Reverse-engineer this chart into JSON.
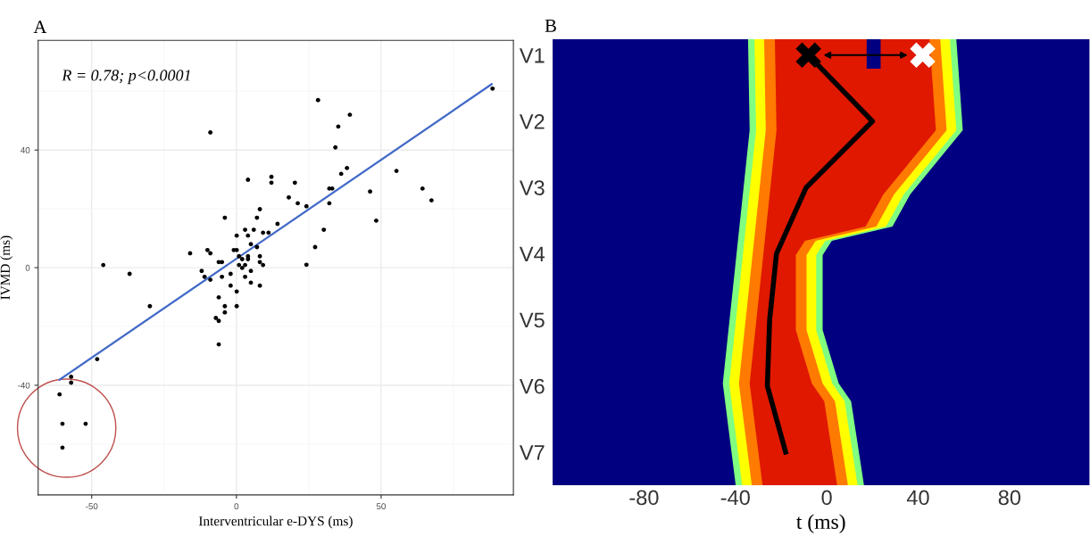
{
  "chart_data": [
    {
      "type": "scatter",
      "title": "A",
      "xlabel": "Interventricular e-DYS (ms)",
      "ylabel": "IVMD (ms)",
      "xlim": [
        -68.5,
        95.7
      ],
      "ylim": [
        -77.3,
        77.3
      ],
      "xticks": [
        -50,
        0,
        50
      ],
      "yticks": [
        -40,
        0,
        40
      ],
      "grid": true,
      "annotations": [
        "R = 0.78; p<0.0001"
      ],
      "series": [
        {
          "color": "#000000",
          "marker": "circle",
          "x": [
            -9.0,
            4.0,
            12.1,
            12.1,
            20.2,
            18.1,
            21.2,
            8.1,
            -4.0,
            7.1,
            14.2,
            3.0,
            6.0,
            0.1,
            4.0,
            9.2,
            11.1,
            5.0,
            7.1,
            -10.0,
            -9.0,
            -16.0,
            -0.9,
            0.1,
            0.9,
            2.0,
            4.0,
            4.0,
            8.1,
            -6.1,
            -5.0,
            8.1,
            9.2,
            0.9,
            3.0,
            2.0,
            -46.0,
            -36.9,
            -12.0,
            -11.0,
            -9.0,
            -5.0,
            -2.0,
            5.0,
            3.0,
            -2.0,
            5.0,
            8.1,
            0.1,
            -6.1,
            -29.9,
            -4.0,
            0.1,
            -4.0,
            -7.1,
            -6.1,
            -6.1,
            -48.1,
            -57.1,
            -57.1,
            -61.1,
            -60.1,
            -52.1,
            -60.1,
            28.2,
            39.2,
            35.2,
            34.2,
            38.2,
            36.2,
            32.1,
            33.1,
            32.1,
            24.2,
            30.2,
            27.2,
            24.2,
            46.2,
            48.3,
            55.3,
            64.3,
            67.4,
            88.5
          ],
          "values": [
            46.0,
            29.9,
            30.9,
            28.9,
            28.9,
            23.9,
            21.9,
            19.9,
            17.0,
            17.0,
            14.9,
            12.9,
            12.9,
            10.9,
            10.9,
            11.9,
            11.9,
            8.0,
            7.0,
            6.0,
            4.9,
            4.9,
            6.0,
            6.0,
            3.9,
            2.9,
            3.9,
            2.9,
            3.9,
            1.9,
            1.9,
            1.9,
            0.9,
            0.9,
            0.9,
            -0.1,
            0.9,
            -2.1,
            -1.1,
            -3.1,
            -4.1,
            -3.1,
            -2.1,
            -1.1,
            -3.1,
            -6.1,
            -5.1,
            -6.1,
            -8.1,
            -10.1,
            -13.1,
            -13.1,
            -13.1,
            -15.2,
            -17.1,
            -18.1,
            -26.1,
            -31.1,
            -37.1,
            -39.1,
            -43.1,
            -53.1,
            -53.1,
            -61.2,
            57.0,
            52.0,
            48.0,
            40.9,
            33.9,
            31.9,
            26.9,
            26.9,
            21.9,
            20.9,
            12.9,
            7.0,
            1.0,
            25.9,
            16.0,
            32.9,
            26.9,
            22.9,
            60.9
          ]
        },
        {
          "type": "line",
          "color": "#4169c8",
          "x": [
            -61.1,
            88.2
          ],
          "values": [
            -38.1,
            62.4
          ]
        }
      ]
    },
    {
      "type": "line",
      "title": "B",
      "xlabel": "t (ms)",
      "orientation": "horizontal",
      "categories": [
        "V1",
        "V2",
        "V3",
        "V4",
        "V5",
        "V6",
        "V7"
      ],
      "xlim": [
        -120,
        115
      ],
      "xticks": [
        -80,
        -40,
        0,
        40,
        80
      ],
      "series": [
        {
          "color": "#000000",
          "line_style": "solid",
          "values": [
            -8,
            20,
            -9,
            -22,
            -25,
            -26,
            -18
          ]
        },
        {
          "type": "scatter",
          "color": "#000000",
          "marker": "cross",
          "values": [
            -8,
            null,
            null,
            null,
            null,
            null,
            null
          ]
        },
        {
          "type": "scatter",
          "color": "#ffffff",
          "marker": "cross",
          "values": [
            42,
            null,
            null,
            null,
            null,
            null,
            null
          ]
        }
      ]
    }
  ]
}
